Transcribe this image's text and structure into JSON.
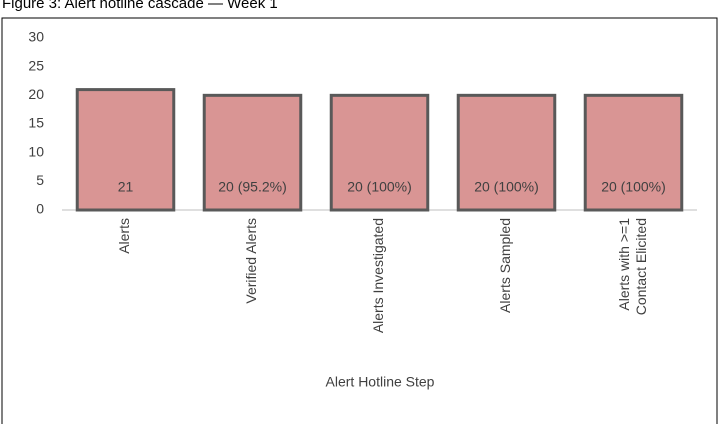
{
  "chart_data": {
    "type": "bar",
    "title": "Figure 3: Alert hotline cascade — Week 1",
    "x_label": "Alert Hotline Step",
    "categories": [
      "Alerts",
      "Verified Alerts",
      "Alerts Investigated",
      "Alerts Sampled",
      "Alerts with >=1\nContact Elicited"
    ],
    "values": [
      21,
      20,
      20,
      20,
      20
    ],
    "value_labels": [
      "21",
      "20 (95.2%)",
      "20 (100%)",
      "20 (100%)",
      "20 (100%)"
    ],
    "color": "#d99594",
    "edge_color": "#595959",
    "ylim": [
      0,
      30
    ],
    "yticks": [
      0,
      5,
      10,
      15,
      20,
      25,
      30
    ],
    "grid": false
  }
}
